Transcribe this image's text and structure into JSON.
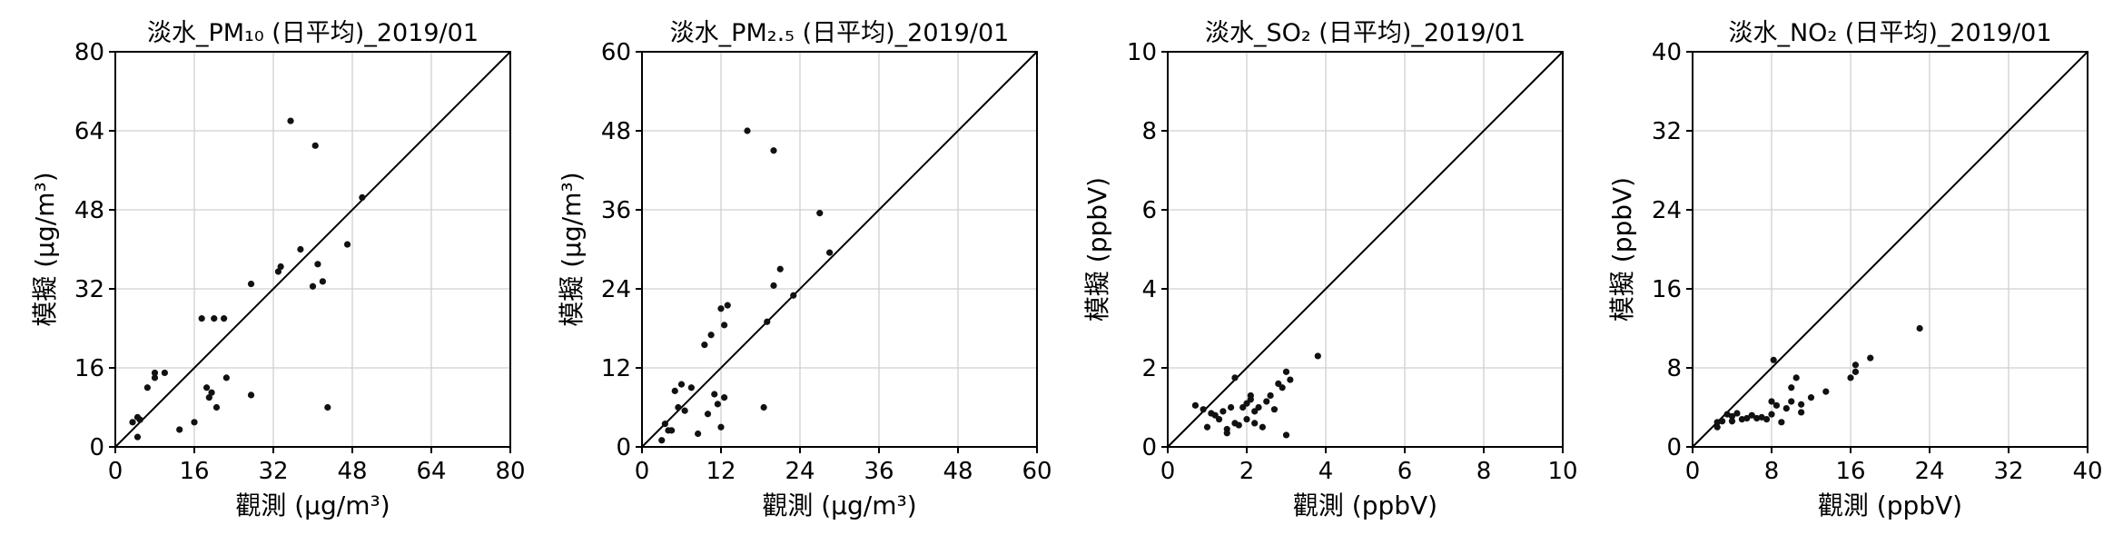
{
  "chart_data": [
    {
      "type": "scatter",
      "title": "淡水_PM₁₀ (日平均)_2019/01",
      "xlabel": "觀測 (μg/m³)",
      "ylabel": "模擬 (μg/m³)",
      "xlim": [
        0,
        80
      ],
      "ylim": [
        0,
        80
      ],
      "xticks": [
        "0",
        "16",
        "32",
        "48",
        "64",
        "80"
      ],
      "yticks": [
        "0",
        "16",
        "32",
        "48",
        "64",
        "80"
      ],
      "grid": true,
      "identity_line": true,
      "x": [
        3.5,
        4.5,
        5,
        4.5,
        6.5,
        8,
        8,
        10,
        13,
        16,
        17.5,
        18.5,
        19,
        19.5,
        20,
        20.5,
        22,
        22.5,
        27.5,
        27.5,
        33,
        33.5,
        35.5,
        37.5,
        40,
        40.5,
        41,
        42,
        43,
        47,
        50
      ],
      "y": [
        5,
        6,
        5.5,
        2,
        12,
        14,
        15,
        15,
        3.5,
        5,
        26,
        12,
        10,
        11,
        26,
        8,
        26,
        14,
        33,
        10.5,
        35.5,
        36.5,
        66,
        40,
        32.5,
        61,
        37,
        33.5,
        8,
        41,
        50.5
      ]
    },
    {
      "type": "scatter",
      "title": "淡水_PM₂.₅ (日平均)_2019/01",
      "xlabel": "觀測 (μg/m³)",
      "ylabel": "模擬 (μg/m³)",
      "xlim": [
        0,
        60
      ],
      "ylim": [
        0,
        60
      ],
      "xticks": [
        "0",
        "12",
        "24",
        "36",
        "48",
        "60"
      ],
      "yticks": [
        "0",
        "12",
        "24",
        "36",
        "48",
        "60"
      ],
      "grid": true,
      "identity_line": true,
      "x": [
        3,
        3.5,
        4,
        4.5,
        5,
        5.5,
        6,
        6.5,
        7.5,
        8.5,
        9.5,
        10,
        10.5,
        11,
        11.5,
        12,
        12,
        12.5,
        12.5,
        13,
        16,
        18.5,
        19,
        20,
        20,
        21,
        23,
        27,
        28.5
      ],
      "y": [
        1,
        3.5,
        2.5,
        2.5,
        8.5,
        6,
        9.5,
        5.5,
        9,
        2,
        15.5,
        5,
        17,
        8,
        6.5,
        21,
        3,
        7.5,
        18.5,
        21.5,
        48,
        6,
        19,
        24.5,
        45,
        27,
        23,
        35.5,
        29.5
      ]
    },
    {
      "type": "scatter",
      "title": "淡水_SO₂ (日平均)_2019/01",
      "xlabel": "觀測 (ppbV)",
      "ylabel": "模擬 (ppbV)",
      "xlim": [
        0,
        10
      ],
      "ylim": [
        0,
        10
      ],
      "xticks": [
        "0",
        "2",
        "4",
        "6",
        "8",
        "10"
      ],
      "yticks": [
        "0",
        "2",
        "4",
        "6",
        "8",
        "10"
      ],
      "grid": true,
      "identity_line": true,
      "x": [
        0.7,
        0.9,
        1.0,
        1.1,
        1.2,
        1.3,
        1.4,
        1.5,
        1.5,
        1.6,
        1.7,
        1.7,
        1.8,
        1.9,
        2.0,
        2.0,
        2.1,
        2.1,
        2.2,
        2.2,
        2.3,
        2.4,
        2.5,
        2.6,
        2.7,
        2.8,
        2.9,
        3.0,
        3.0,
        3.1,
        3.8
      ],
      "y": [
        1.05,
        0.95,
        0.5,
        0.85,
        0.8,
        0.7,
        0.9,
        0.45,
        0.35,
        1.0,
        0.6,
        1.75,
        0.55,
        1.0,
        1.1,
        0.7,
        1.3,
        1.2,
        0.9,
        0.6,
        1.0,
        0.5,
        1.15,
        1.3,
        0.95,
        1.6,
        1.5,
        1.9,
        0.3,
        1.7,
        2.3
      ]
    },
    {
      "type": "scatter",
      "title": "淡水_NO₂ (日平均)_2019/01",
      "xlabel": "觀測 (ppbV)",
      "ylabel": "模擬 (ppbV)",
      "xlim": [
        0,
        40
      ],
      "ylim": [
        0,
        40
      ],
      "xticks": [
        "0",
        "8",
        "16",
        "24",
        "32",
        "40"
      ],
      "yticks": [
        "0",
        "8",
        "16",
        "24",
        "32",
        "40"
      ],
      "grid": true,
      "identity_line": true,
      "x": [
        2.5,
        2.5,
        3,
        3.5,
        4,
        4,
        4.5,
        5,
        5.5,
        6,
        6.5,
        7,
        7.5,
        8,
        8,
        8.2,
        8.5,
        9,
        9.5,
        10,
        10,
        10.5,
        11,
        11,
        12,
        13.5,
        16,
        16.5,
        16.5,
        18,
        23
      ],
      "y": [
        2.5,
        2,
        2.6,
        3.3,
        2.6,
        3.1,
        3.4,
        2.8,
        2.9,
        3.2,
        2.9,
        3.0,
        2.8,
        4.6,
        3.3,
        8.8,
        4.2,
        2.5,
        3.9,
        6.0,
        4.6,
        7.0,
        4.3,
        3.5,
        5.0,
        5.6,
        7.0,
        7.6,
        8.3,
        9.0,
        12.0
      ]
    }
  ]
}
